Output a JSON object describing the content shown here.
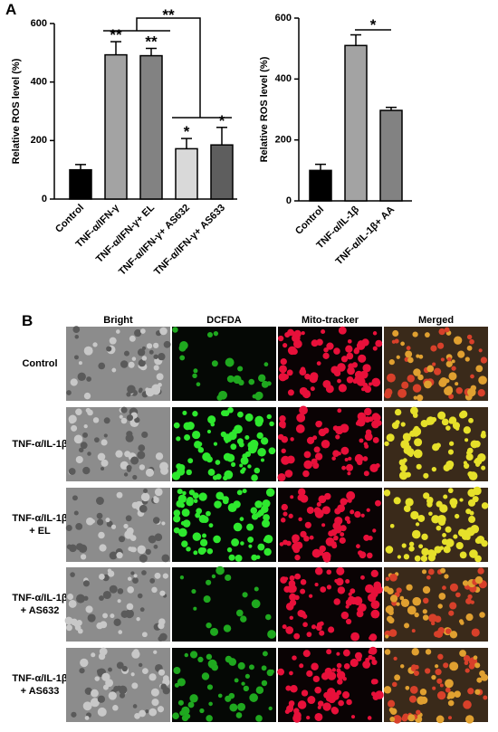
{
  "panel_labels": [
    "A",
    "B"
  ],
  "chart_data": [
    {
      "type": "bar",
      "ylabel": "Relative ROS level (%)",
      "categories": [
        "Control",
        "TNF-α/IFN-γ",
        "TNF-α/IFN-γ+ EL",
        "TNF-α/IFN-γ+ AS632",
        "TNF-α/IFN-γ+ AS633"
      ],
      "values": [
        100,
        493,
        490,
        172,
        185
      ],
      "errors": [
        18,
        45,
        25,
        35,
        60
      ],
      "colors": [
        "#000000",
        "#a3a3a3",
        "#828282",
        "#d9d9d9",
        "#5e5e5e"
      ],
      "significance": [
        null,
        "**",
        "**",
        "*",
        "*"
      ],
      "bracket_labels": [
        "**"
      ],
      "ylim": [
        0,
        600
      ],
      "yticks": [
        0,
        200,
        400,
        600
      ]
    },
    {
      "type": "bar",
      "ylabel": "Relative ROS level (%)",
      "categories": [
        "Control",
        "TNF-α/IL-1β",
        "TNF-α/IL-1β+ AA"
      ],
      "values": [
        100,
        510,
        297
      ],
      "errors": [
        20,
        35,
        10
      ],
      "colors": [
        "#000000",
        "#a3a3a3",
        "#828282"
      ],
      "bracket_labels": [
        "*"
      ],
      "ylim": [
        0,
        600
      ],
      "yticks": [
        0,
        200,
        400,
        600
      ]
    }
  ],
  "microscopy": {
    "columns": [
      "Bright",
      "DCFDA",
      "Mito-tracker",
      "Merged"
    ],
    "rows": [
      [
        "Control"
      ],
      [
        "TNF-α/IL-1β"
      ],
      [
        "TNF-α/IL-1β",
        "+ EL"
      ],
      [
        "TNF-α/IL-1β",
        "+ AS632"
      ],
      [
        "TNF-α/IL-1β",
        "+ AS633"
      ]
    ]
  }
}
